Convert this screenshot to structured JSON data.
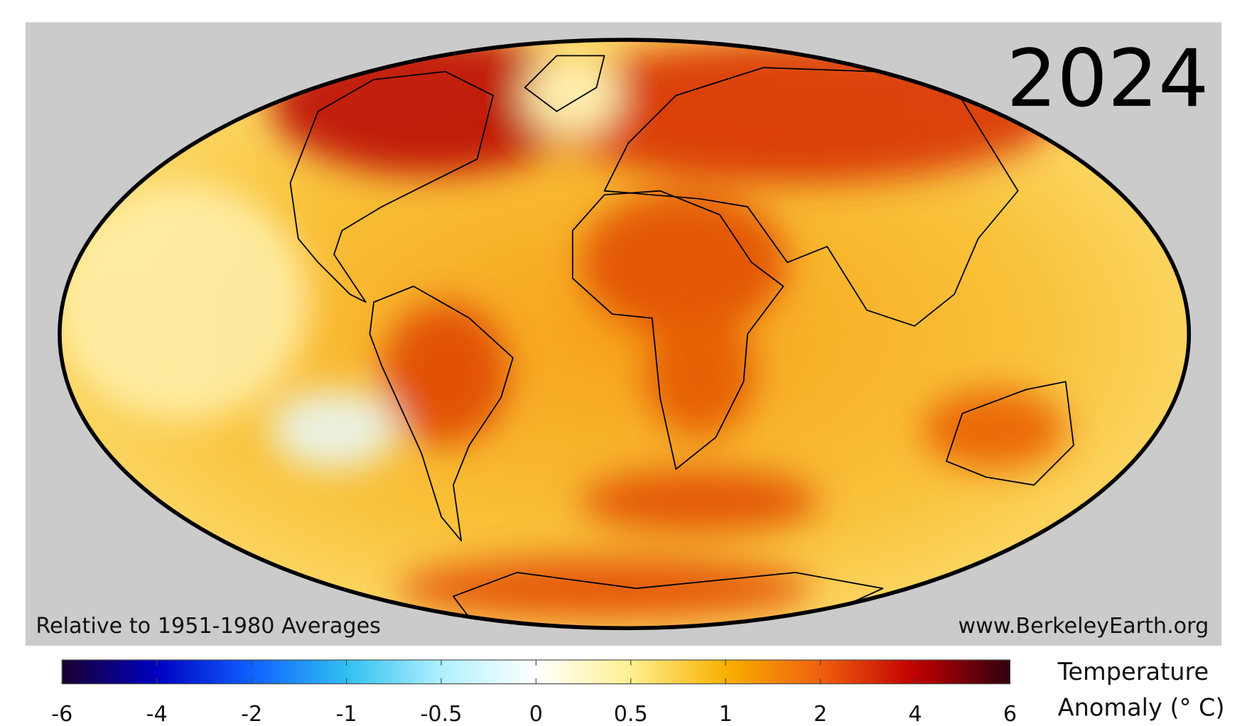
{
  "year": "2024",
  "baseline_note": "Relative to 1951-1980 Averages",
  "source": "www.BerkeleyEarth.org",
  "colorbar": {
    "label_lines": [
      "Temperature",
      "Anomaly (° C)"
    ],
    "ticks": [
      -6,
      -4,
      -2,
      -1,
      -0.5,
      0,
      0.5,
      1,
      2,
      4,
      6
    ],
    "colors": [
      "#1a0030",
      "#0000c0",
      "#1060ff",
      "#30c0f0",
      "#b0f0ff",
      "#ffffff",
      "#fff090",
      "#f8b000",
      "#f06010",
      "#c00000",
      "#300010"
    ]
  }
}
